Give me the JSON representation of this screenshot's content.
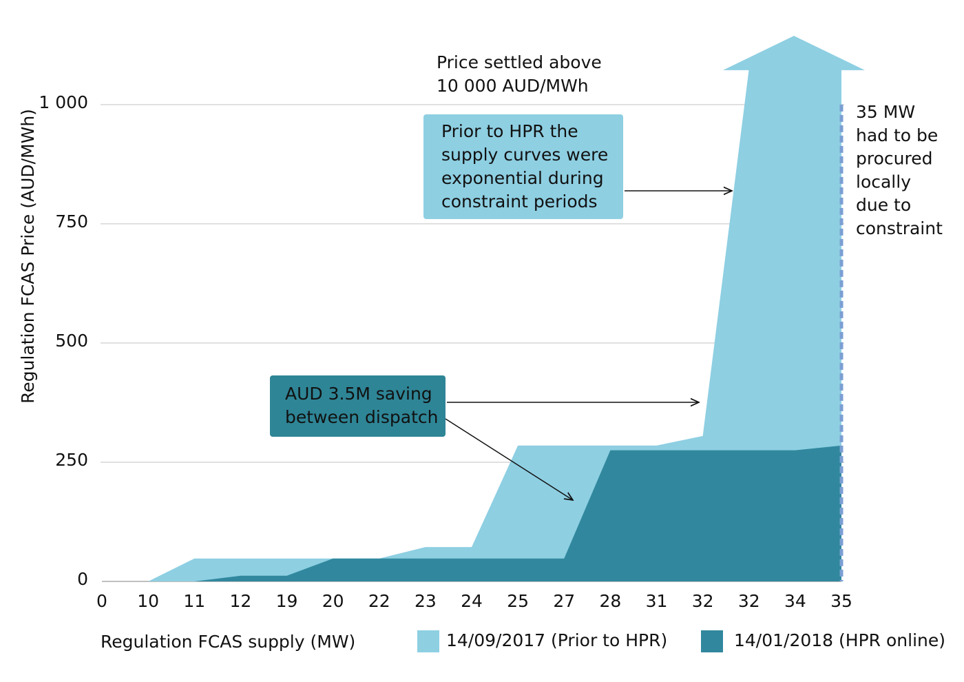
{
  "chart_data": {
    "type": "area",
    "y_label": "Regulation FCAS Price (AUD/MWh)",
    "x_label": "Regulation FCAS supply (MW)",
    "categories": [
      "0",
      "10",
      "11",
      "12",
      "19",
      "20",
      "22",
      "23",
      "24",
      "25",
      "27",
      "28",
      "31",
      "32",
      "32",
      "34",
      "35"
    ],
    "series": [
      {
        "name": "14/09/2017 (Prior to HPR)",
        "color": "#8ecfe2",
        "values": [
          0,
          0,
          48,
          48,
          48,
          48,
          48,
          72,
          72,
          285,
          285,
          285,
          285,
          305,
          1075,
          1075,
          1075
        ]
      },
      {
        "name": "14/01/2018 (HPR online)",
        "color": "#31889e",
        "values": [
          0,
          0,
          0,
          12,
          12,
          48,
          48,
          48,
          48,
          48,
          48,
          275,
          275,
          275,
          275,
          275,
          285
        ]
      }
    ],
    "ylim": [
      0,
      1150
    ],
    "yticks": [
      0,
      250,
      500,
      750,
      {
        "value": 1000,
        "label": "1 000"
      }
    ],
    "grid": true,
    "constraint_line_color": "#7b9fd4",
    "annotations": {
      "price_settled": [
        "Price settled above",
        "10 000 AUD/MWh"
      ],
      "prior_hpr": [
        "Prior to HPR the",
        "supply curves were",
        "exponential during",
        "constraint periods"
      ],
      "saving": [
        "AUD 3.5M saving",
        "between dispatch"
      ],
      "constraint": [
        "35 MW",
        "had to be",
        "procured",
        "locally",
        "due to",
        "constraint"
      ]
    }
  }
}
